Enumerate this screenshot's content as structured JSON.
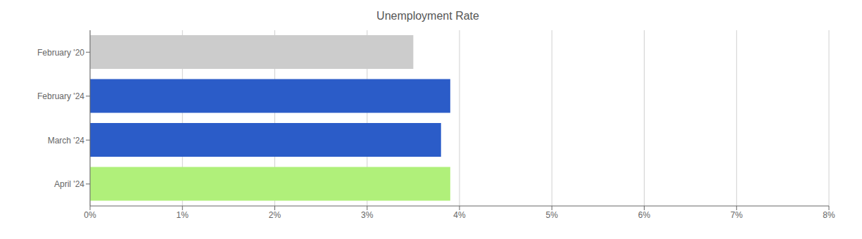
{
  "chart_data": {
    "type": "bar",
    "title": "Unemployment Rate",
    "orientation": "horizontal",
    "categories": [
      "February '20",
      "February '24",
      "March '24",
      "April '24"
    ],
    "values": [
      3.5,
      3.9,
      3.8,
      3.9
    ],
    "colors": [
      "#cccccc",
      "#2b5cc8",
      "#2b5cc8",
      "#b0f07a"
    ],
    "xlim": [
      0,
      8
    ],
    "xticks": [
      {
        "value": 0,
        "label": "0%"
      },
      {
        "value": 1,
        "label": "1%"
      },
      {
        "value": 2,
        "label": "2%"
      },
      {
        "value": 3,
        "label": "3%"
      },
      {
        "value": 4,
        "label": "4%"
      },
      {
        "value": 5,
        "label": "5%"
      },
      {
        "value": 6,
        "label": "6%"
      },
      {
        "value": 7,
        "label": "7%"
      },
      {
        "value": 8,
        "label": "8%"
      }
    ],
    "grid": true
  }
}
